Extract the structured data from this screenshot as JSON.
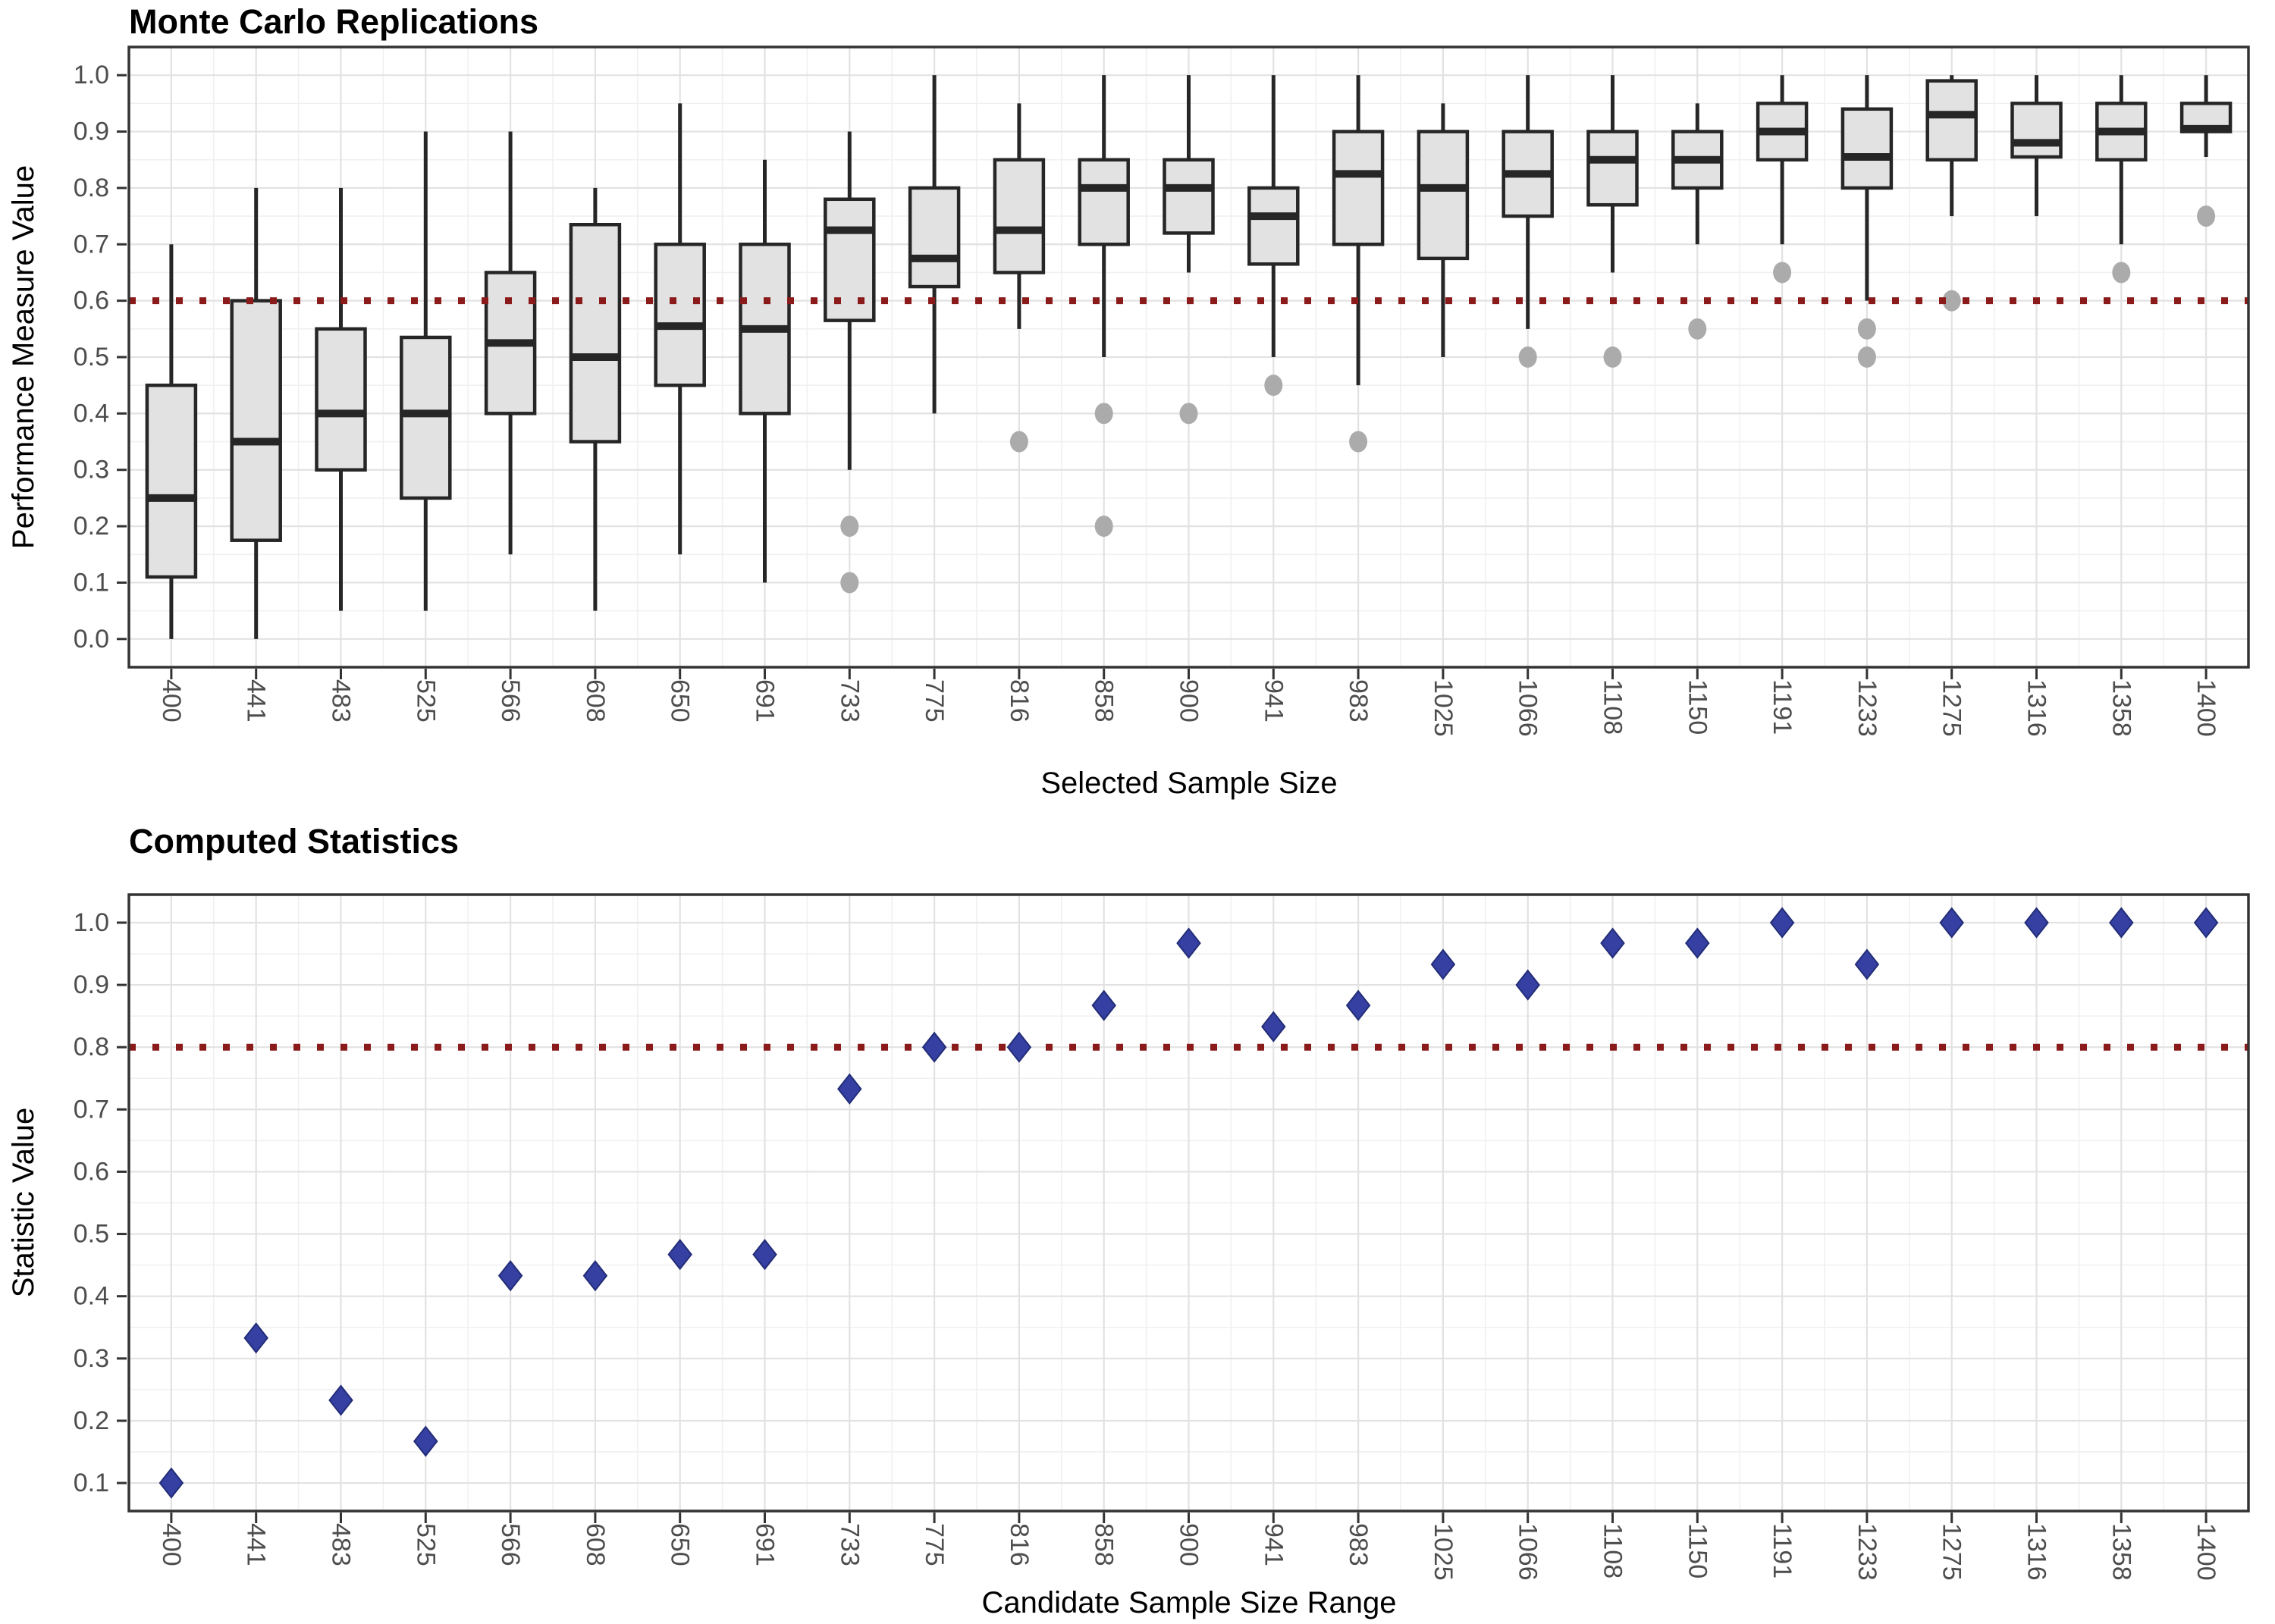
{
  "style": {
    "background": "#FFFFFF",
    "panel_border": "#333333",
    "grid_major": "#E2E2E2",
    "grid_minor": "#F0F0F0",
    "tick_mark_color": "#333333",
    "tick_text_color": "#4D4D4D",
    "box_fill": "#E2E2E2",
    "box_stroke": "#262626",
    "outlier_color": "#ABABAB",
    "ref_line_color": "#8B1B1B",
    "point_fill": "#3540A2",
    "point_stroke": "#232D77"
  },
  "chart_data": [
    {
      "type": "boxplot",
      "title": "Monte Carlo Replications",
      "xlabel": "Selected Sample Size",
      "ylabel": "Performance Measure Value",
      "x_categories": [
        400,
        441,
        483,
        525,
        566,
        608,
        650,
        691,
        733,
        775,
        816,
        858,
        900,
        941,
        983,
        1025,
        1066,
        1108,
        1150,
        1191,
        1233,
        1275,
        1316,
        1358,
        1400
      ],
      "y_ticks": [
        0.0,
        0.1,
        0.2,
        0.3,
        0.4,
        0.5,
        0.6,
        0.7,
        0.8,
        0.9,
        1.0
      ],
      "ylim": [
        -0.05,
        1.05
      ],
      "grid": "on",
      "legend": "none",
      "reference_line": {
        "y": 0.6,
        "style": "dotted",
        "color": "#8B1B1B"
      },
      "boxes": [
        {
          "x": 400,
          "low": 0.0,
          "q1": 0.11,
          "median": 0.25,
          "q3": 0.45,
          "high": 0.7,
          "outliers": []
        },
        {
          "x": 441,
          "low": 0.0,
          "q1": 0.175,
          "median": 0.35,
          "q3": 0.6,
          "high": 0.8,
          "outliers": []
        },
        {
          "x": 483,
          "low": 0.05,
          "q1": 0.3,
          "median": 0.4,
          "q3": 0.55,
          "high": 0.8,
          "outliers": []
        },
        {
          "x": 525,
          "low": 0.05,
          "q1": 0.25,
          "median": 0.4,
          "q3": 0.535,
          "high": 0.9,
          "outliers": []
        },
        {
          "x": 566,
          "low": 0.15,
          "q1": 0.4,
          "median": 0.525,
          "q3": 0.65,
          "high": 0.9,
          "outliers": []
        },
        {
          "x": 608,
          "low": 0.05,
          "q1": 0.35,
          "median": 0.5,
          "q3": 0.735,
          "high": 0.8,
          "outliers": []
        },
        {
          "x": 650,
          "low": 0.15,
          "q1": 0.45,
          "median": 0.555,
          "q3": 0.7,
          "high": 0.95,
          "outliers": []
        },
        {
          "x": 691,
          "low": 0.1,
          "q1": 0.4,
          "median": 0.55,
          "q3": 0.7,
          "high": 0.85,
          "outliers": []
        },
        {
          "x": 733,
          "low": 0.3,
          "q1": 0.565,
          "median": 0.725,
          "q3": 0.78,
          "high": 0.9,
          "outliers": [
            0.2,
            0.1
          ]
        },
        {
          "x": 775,
          "low": 0.4,
          "q1": 0.625,
          "median": 0.675,
          "q3": 0.8,
          "high": 1.0,
          "outliers": []
        },
        {
          "x": 816,
          "low": 0.55,
          "q1": 0.65,
          "median": 0.725,
          "q3": 0.85,
          "high": 0.95,
          "outliers": [
            0.35
          ]
        },
        {
          "x": 858,
          "low": 0.5,
          "q1": 0.7,
          "median": 0.8,
          "q3": 0.85,
          "high": 1.0,
          "outliers": [
            0.4,
            0.2
          ]
        },
        {
          "x": 900,
          "low": 0.65,
          "q1": 0.72,
          "median": 0.8,
          "q3": 0.85,
          "high": 1.0,
          "outliers": [
            0.4
          ]
        },
        {
          "x": 941,
          "low": 0.5,
          "q1": 0.665,
          "median": 0.75,
          "q3": 0.8,
          "high": 1.0,
          "outliers": [
            0.45
          ]
        },
        {
          "x": 983,
          "low": 0.45,
          "q1": 0.7,
          "median": 0.825,
          "q3": 0.9,
          "high": 1.0,
          "outliers": [
            0.35
          ]
        },
        {
          "x": 1025,
          "low": 0.5,
          "q1": 0.675,
          "median": 0.8,
          "q3": 0.9,
          "high": 0.95,
          "outliers": []
        },
        {
          "x": 1066,
          "low": 0.55,
          "q1": 0.75,
          "median": 0.825,
          "q3": 0.9,
          "high": 1.0,
          "outliers": [
            0.5
          ]
        },
        {
          "x": 1108,
          "low": 0.65,
          "q1": 0.77,
          "median": 0.85,
          "q3": 0.9,
          "high": 1.0,
          "outliers": [
            0.5
          ]
        },
        {
          "x": 1150,
          "low": 0.7,
          "q1": 0.8,
          "median": 0.85,
          "q3": 0.9,
          "high": 0.95,
          "outliers": [
            0.55
          ]
        },
        {
          "x": 1191,
          "low": 0.7,
          "q1": 0.85,
          "median": 0.9,
          "q3": 0.95,
          "high": 1.0,
          "outliers": [
            0.65
          ]
        },
        {
          "x": 1233,
          "low": 0.6,
          "q1": 0.8,
          "median": 0.855,
          "q3": 0.94,
          "high": 1.0,
          "outliers": [
            0.55,
            0.5
          ]
        },
        {
          "x": 1275,
          "low": 0.75,
          "q1": 0.85,
          "median": 0.93,
          "q3": 0.99,
          "high": 1.0,
          "outliers": [
            0.6
          ]
        },
        {
          "x": 1316,
          "low": 0.75,
          "q1": 0.855,
          "median": 0.88,
          "q3": 0.95,
          "high": 1.0,
          "outliers": []
        },
        {
          "x": 1358,
          "low": 0.7,
          "q1": 0.85,
          "median": 0.9,
          "q3": 0.95,
          "high": 1.0,
          "outliers": [
            0.65
          ]
        },
        {
          "x": 1400,
          "low": 0.855,
          "q1": 0.9,
          "median": 0.905,
          "q3": 0.95,
          "high": 1.0,
          "outliers": [
            0.75
          ]
        }
      ]
    },
    {
      "type": "scatter",
      "title": "Computed Statistics",
      "xlabel": "Candidate Sample Size Range",
      "ylabel": "Statistic Value",
      "marker": "diamond",
      "x_categories": [
        400,
        441,
        483,
        525,
        566,
        608,
        650,
        691,
        733,
        775,
        816,
        858,
        900,
        941,
        983,
        1025,
        1066,
        1108,
        1150,
        1191,
        1233,
        1275,
        1316,
        1358,
        1400
      ],
      "y_ticks": [
        0.1,
        0.2,
        0.3,
        0.4,
        0.5,
        0.6,
        0.7,
        0.8,
        0.9,
        1.0
      ],
      "ylim": [
        0.055,
        1.045
      ],
      "grid": "on",
      "legend": "none",
      "reference_line": {
        "y": 0.8,
        "style": "dotted",
        "color": "#8B1B1B"
      },
      "series": [
        {
          "name": "statistic",
          "x": [
            400,
            441,
            483,
            525,
            566,
            608,
            650,
            691,
            733,
            775,
            816,
            858,
            900,
            941,
            983,
            1025,
            1066,
            1108,
            1150,
            1191,
            1233,
            1275,
            1316,
            1358,
            1400
          ],
          "y": [
            0.1,
            0.333,
            0.233,
            0.167,
            0.433,
            0.433,
            0.467,
            0.467,
            0.733,
            0.8,
            0.8,
            0.867,
            0.967,
            0.833,
            0.867,
            0.933,
            0.9,
            0.967,
            0.967,
            1.0,
            0.933,
            1.0,
            1.0,
            1.0,
            1.0
          ]
        }
      ]
    }
  ]
}
